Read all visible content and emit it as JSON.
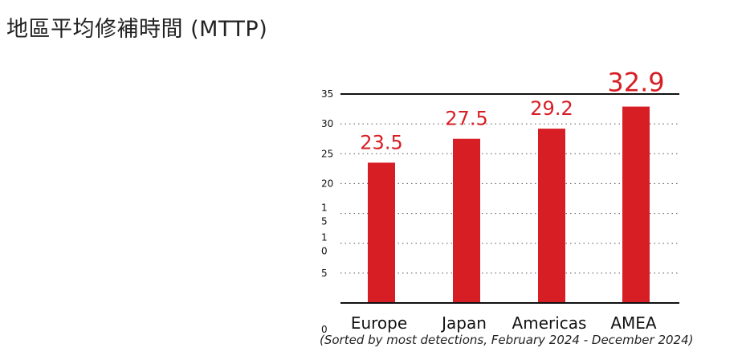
{
  "page": {
    "title": "地區平均修補時間 (MTTP)",
    "footnote": "(Sorted by most detections, February 2024 - December 2024)"
  },
  "colors": {
    "bar": "#d81e25",
    "value_label": "#d81e25",
    "axis": "#111111",
    "grid": "#555555"
  },
  "chart_data": {
    "type": "bar",
    "title": "地區平均修補時間 (MTTP)",
    "xlabel": "",
    "ylabel": "",
    "ylim": [
      0,
      35
    ],
    "yticks": [
      "0",
      "5",
      "1\n0",
      "1\n5",
      "20",
      "25",
      "30",
      "35"
    ],
    "grid": true,
    "categories": [
      "Europe",
      "Japan",
      "Americas",
      "AMEA"
    ],
    "values": [
      23.5,
      27.5,
      29.2,
      32.9
    ],
    "value_labels": [
      "23.5",
      "27.5",
      "29.2",
      "32.9"
    ]
  }
}
